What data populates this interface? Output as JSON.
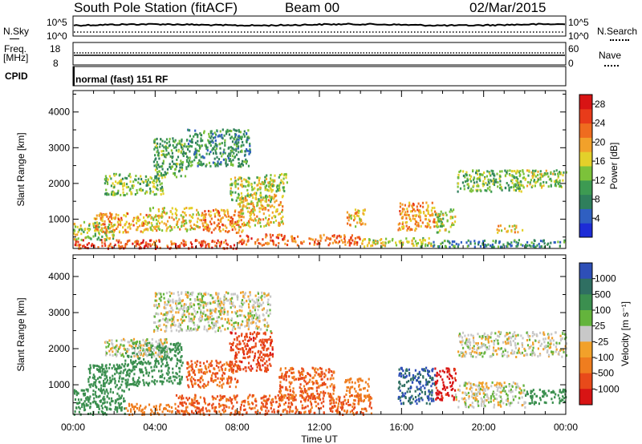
{
  "header": {
    "station": "South Pole Station (fitACF)",
    "beam": "Beam 00",
    "date": "02/Mar/2015"
  },
  "nsky": {
    "label": "N.Sky",
    "ticks": [
      "10^5",
      "10^0"
    ],
    "right_label": "N.Search",
    "right_ticks": [
      "10^5",
      "10^0"
    ]
  },
  "freq": {
    "label": "Freq.",
    "unit": "[MHz]",
    "ticks": [
      "18",
      "8"
    ],
    "right_label": "Nave",
    "right_ticks": [
      "60",
      "0"
    ]
  },
  "cpid": {
    "label": "CPID",
    "program": "normal (fast) 151 RF"
  },
  "colors": {
    "power_scale": [
      "#1d2cd6",
      "#2f5fc1",
      "#2f7f5c",
      "#3d9a52",
      "#7cc23a",
      "#e3d02a",
      "#f2a12a",
      "#ef6c1f",
      "#e83b1a",
      "#d81414"
    ],
    "velocity_scale": [
      "#2e4fb7",
      "#2f6f62",
      "#3b8f4f",
      "#64b43c",
      "#c8c8c8",
      "#f2a12a",
      "#ef7d1f",
      "#e84a1a",
      "#d81414"
    ]
  },
  "chart_data": [
    {
      "type": "heatmap",
      "title": "",
      "xlabel": "Time UT",
      "ylabel": "Slant Range [km]",
      "x_ticks": [
        "00:00",
        "04:00",
        "08:00",
        "12:00",
        "16:00",
        "20:00",
        "00:00"
      ],
      "xlim": [
        0,
        24
      ],
      "y_ticks": [
        1000,
        2000,
        3000,
        4000
      ],
      "ylim": [
        180,
        4600
      ],
      "colorbar": {
        "label": "Power [dB]",
        "ticks": [
          "4",
          "8",
          "12",
          "16",
          "20",
          "24",
          "28"
        ],
        "range": [
          0,
          30
        ]
      },
      "blobs": [
        {
          "t0": 0.0,
          "t1": 8.0,
          "r0": 200,
          "r1": 450,
          "v": 25
        },
        {
          "t0": 8.0,
          "t1": 14.0,
          "r0": 300,
          "r1": 600,
          "v": 23
        },
        {
          "t0": 14.0,
          "t1": 17.5,
          "r0": 250,
          "r1": 500,
          "v": 16
        },
        {
          "t0": 17.5,
          "t1": 24.0,
          "r0": 250,
          "r1": 450,
          "v": 8
        },
        {
          "t0": 0.0,
          "t1": 2.0,
          "r0": 450,
          "r1": 950,
          "v": 14
        },
        {
          "t0": 1.0,
          "t1": 3.6,
          "r0": 650,
          "r1": 1200,
          "v": 20
        },
        {
          "t0": 3.6,
          "t1": 6.2,
          "r0": 700,
          "r1": 1350,
          "v": 17
        },
        {
          "t0": 6.2,
          "t1": 8.3,
          "r0": 650,
          "r1": 1300,
          "v": 21
        },
        {
          "t0": 8.0,
          "t1": 10.2,
          "r0": 800,
          "r1": 1700,
          "v": 18
        },
        {
          "t0": 1.5,
          "t1": 4.4,
          "r0": 1700,
          "r1": 2300,
          "v": 13
        },
        {
          "t0": 3.9,
          "t1": 5.5,
          "r0": 2200,
          "r1": 3300,
          "v": 11
        },
        {
          "t0": 5.5,
          "t1": 8.6,
          "r0": 2500,
          "r1": 3550,
          "v": 9
        },
        {
          "t0": 7.6,
          "t1": 9.8,
          "r0": 1500,
          "r1": 2200,
          "v": 15
        },
        {
          "t0": 9.3,
          "t1": 10.4,
          "r0": 1800,
          "r1": 2300,
          "v": 14
        },
        {
          "t0": 13.3,
          "t1": 14.2,
          "r0": 800,
          "r1": 1300,
          "v": 19
        },
        {
          "t0": 15.8,
          "t1": 17.6,
          "r0": 700,
          "r1": 1500,
          "v": 20
        },
        {
          "t0": 17.6,
          "t1": 18.6,
          "r0": 650,
          "r1": 1300,
          "v": 15
        },
        {
          "t0": 18.7,
          "t1": 21.8,
          "r0": 1800,
          "r1": 2400,
          "v": 12
        },
        {
          "t0": 21.3,
          "t1": 24.0,
          "r0": 1900,
          "r1": 2400,
          "v": 14
        },
        {
          "t0": 20.6,
          "t1": 22.0,
          "r0": 650,
          "r1": 850,
          "v": 18
        }
      ]
    },
    {
      "type": "heatmap",
      "title": "",
      "xlabel": "Time UT",
      "ylabel": "Slant Range [km]",
      "x_ticks": [
        "00:00",
        "04:00",
        "08:00",
        "12:00",
        "16:00",
        "20:00",
        "00:00"
      ],
      "xlim": [
        0,
        24
      ],
      "y_ticks": [
        1000,
        2000,
        3000,
        4000
      ],
      "ylim": [
        180,
        4600
      ],
      "colorbar": {
        "label": "Velocity [m s⁻¹]",
        "ticks": [
          "1000",
          "500",
          "100",
          "25",
          "-25",
          "-100",
          "-500",
          "-1000"
        ]
      },
      "blobs": [
        {
          "t0": 0.0,
          "t1": 2.5,
          "r0": 200,
          "r1": 900,
          "v": 120
        },
        {
          "t0": 2.5,
          "t1": 5.0,
          "r0": 200,
          "r1": 500,
          "v": -150
        },
        {
          "t0": 5.0,
          "t1": 14.5,
          "r0": 200,
          "r1": 750,
          "v": -350
        },
        {
          "t0": 0.7,
          "t1": 2.7,
          "r0": 900,
          "r1": 1600,
          "v": 150
        },
        {
          "t0": 2.5,
          "t1": 5.3,
          "r0": 1000,
          "r1": 2200,
          "v": 120
        },
        {
          "t0": 5.5,
          "t1": 8.0,
          "r0": 950,
          "r1": 1700,
          "v": -300
        },
        {
          "t0": 7.6,
          "t1": 9.7,
          "r0": 1400,
          "r1": 2500,
          "v": -600
        },
        {
          "t0": 10.0,
          "t1": 12.7,
          "r0": 600,
          "r1": 1500,
          "v": -300
        },
        {
          "t0": 1.5,
          "t1": 4.6,
          "r0": 1800,
          "r1": 2300,
          "v": 0
        },
        {
          "t0": 3.9,
          "t1": 9.6,
          "r0": 2500,
          "r1": 3600,
          "v": 0
        },
        {
          "t0": 13.2,
          "t1": 14.4,
          "r0": 600,
          "r1": 1200,
          "v": -150
        },
        {
          "t0": 15.8,
          "t1": 17.6,
          "r0": 500,
          "r1": 1500,
          "v": 700
        },
        {
          "t0": 17.6,
          "t1": 18.6,
          "r0": 600,
          "r1": 1500,
          "v": -1100
        },
        {
          "t0": 18.7,
          "t1": 24.0,
          "r0": 1800,
          "r1": 2500,
          "v": 0
        },
        {
          "t0": 18.6,
          "t1": 22.0,
          "r0": 400,
          "r1": 1100,
          "v": 0
        },
        {
          "t0": 22.0,
          "t1": 24.0,
          "r0": 500,
          "r1": 900,
          "v": 200
        }
      ]
    }
  ]
}
